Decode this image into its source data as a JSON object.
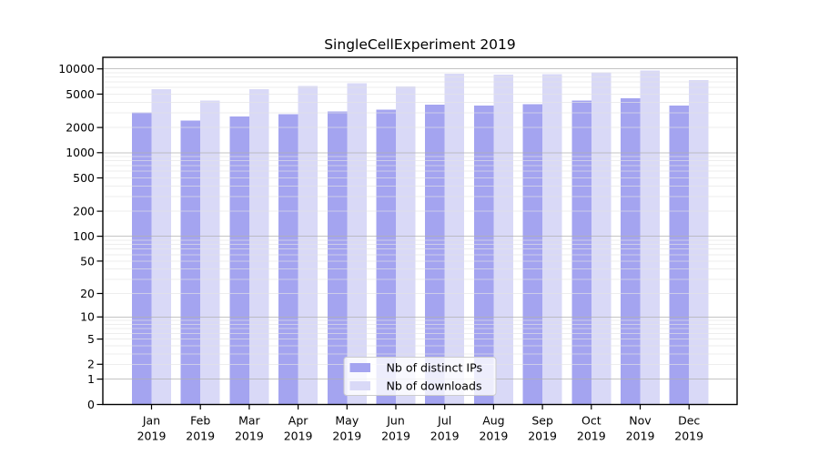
{
  "chart_data": {
    "type": "bar",
    "title": "SingleCellExperiment 2019",
    "categories": [
      "Jan",
      "Feb",
      "Mar",
      "Apr",
      "May",
      "Jun",
      "Jul",
      "Aug",
      "Sep",
      "Oct",
      "Nov",
      "Dec"
    ],
    "x_year_label": "2019",
    "series": [
      {
        "name": "Nb of distinct IPs",
        "color": "#a4a4f0",
        "values": [
          3040,
          2410,
          2710,
          2870,
          3090,
          3280,
          3750,
          3650,
          3810,
          4170,
          4460,
          3650
        ]
      },
      {
        "name": "Nb of downloads",
        "color": "#d9d9f7",
        "values": [
          5730,
          4210,
          5730,
          6220,
          6770,
          6170,
          8760,
          8540,
          8690,
          9140,
          9610,
          7350
        ]
      }
    ],
    "y_axis": {
      "scale": "log1p",
      "ylim": [
        0,
        13700
      ],
      "tick_values": [
        10000,
        5000,
        2000,
        1000,
        500,
        200,
        100,
        50,
        20,
        10,
        5,
        2,
        1,
        0
      ],
      "tick_labels": [
        "10000",
        "5000",
        "2000",
        "1000",
        "500",
        "200",
        "100",
        "50",
        "20",
        "10",
        "5",
        "2",
        "1",
        "0"
      ]
    },
    "legend": {
      "position": "bottom-center",
      "entries": [
        "Nb of distinct IPs",
        "Nb of downloads"
      ]
    },
    "grid": true,
    "colors": {
      "bar_distinct_ips": "#a4a4f0",
      "bar_downloads": "#d9d9f7",
      "major_grid": "#b0b0b0",
      "minor_grid": "#e4e4e4",
      "axis": "#000000",
      "background": "#ffffff",
      "legend_border": "#cccccc"
    }
  }
}
